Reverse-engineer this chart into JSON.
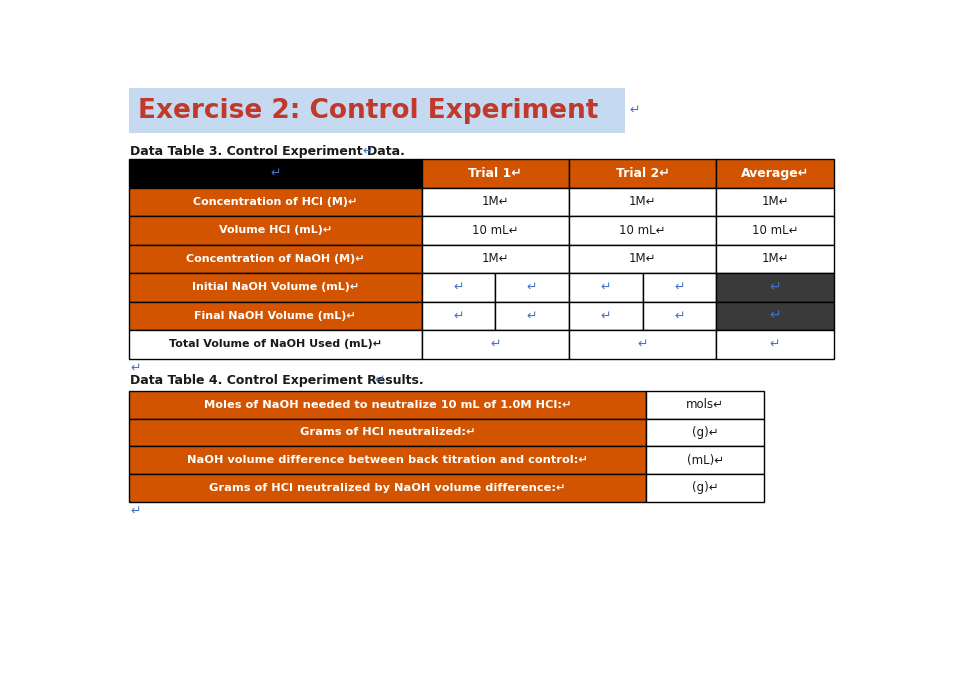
{
  "title": "Exercise 2: Control Experiment",
  "title_color": "#c0392b",
  "title_bg": "#c5d9f1",
  "subtitle1": "Data Table 3. Control Experiment Data.",
  "subtitle2": "Data Table 4. Control Experiment Results.",
  "table2_rows": [
    [
      "Moles of NaOH needed to neutralize 10 mL of 1.0M HCl:",
      "mols"
    ],
    [
      "Grams of HCl neutralized:",
      "(g)"
    ],
    [
      "NaOH volume difference between back titration and control:",
      "(mL)"
    ],
    [
      "Grams of HCl neutralized by NaOH volume difference:",
      "(g)"
    ]
  ],
  "orange": "#d35400",
  "black": "#000000",
  "dark_gray": "#3a3a3a",
  "white": "#ffffff",
  "blue": "#4472c4",
  "text_dark": "#1a1a1a",
  "return_symbol": "↵"
}
